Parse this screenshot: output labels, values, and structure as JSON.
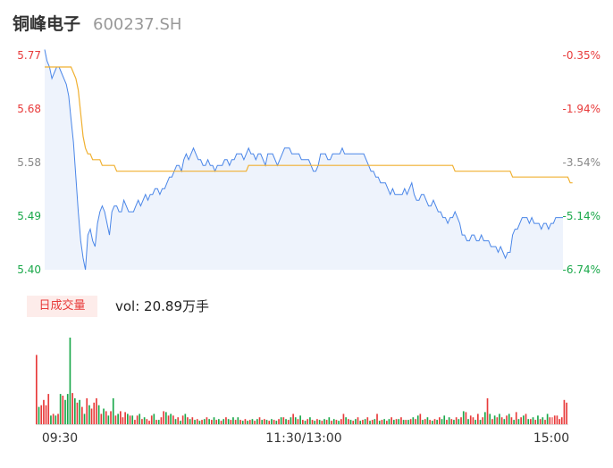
{
  "header": {
    "name": "铜峰电子",
    "code": "600237.SH"
  },
  "volume_panel": {
    "tag": "日成交量",
    "label": "vol: 20.89万手"
  },
  "colors": {
    "up": "#e83a3a",
    "down": "#1aa84a",
    "price_line": "#4a86e8",
    "avg_line": "#f0b030",
    "area": "#eef3fc"
  },
  "chart_data": [
    {
      "type": "line",
      "title": "",
      "x_ticks": [
        "09:30",
        "11:30/13:00",
        "15:00"
      ],
      "y_ticks": [
        "5.77",
        "5.68",
        "5.58",
        "5.49",
        "5.40"
      ],
      "y_ticks_right": [
        "-0.35%",
        "-1.94%",
        "-3.54%",
        "-5.14%",
        "-6.74%"
      ],
      "ylim": [
        5.4,
        5.77
      ],
      "series": [
        {
          "values": [
            5.78,
            5.76,
            5.75,
            5.73,
            5.74,
            5.75,
            5.75,
            5.74,
            5.73,
            5.72,
            5.7,
            5.66,
            5.62,
            5.56,
            5.5,
            5.45,
            5.42,
            5.4,
            5.46,
            5.47,
            5.45,
            5.44,
            5.48,
            5.5,
            5.51,
            5.5,
            5.48,
            5.46,
            5.5,
            5.51,
            5.51,
            5.5,
            5.5,
            5.52,
            5.51,
            5.5,
            5.5,
            5.5,
            5.51,
            5.52,
            5.51,
            5.52,
            5.53,
            5.52,
            5.53,
            5.53,
            5.54,
            5.54,
            5.53,
            5.54,
            5.54,
            5.55,
            5.56,
            5.56,
            5.57,
            5.58,
            5.58,
            5.57,
            5.59,
            5.6,
            5.59,
            5.6,
            5.61,
            5.6,
            5.59,
            5.59,
            5.58,
            5.58,
            5.59,
            5.58,
            5.58,
            5.57,
            5.58,
            5.58,
            5.58,
            5.59,
            5.59,
            5.58,
            5.59,
            5.59,
            5.6,
            5.6,
            5.6,
            5.59,
            5.6,
            5.61,
            5.6,
            5.6,
            5.59,
            5.6,
            5.6,
            5.59,
            5.58,
            5.6,
            5.6,
            5.6,
            5.59,
            5.58,
            5.59,
            5.6,
            5.61,
            5.61,
            5.61,
            5.6,
            5.6,
            5.6,
            5.6,
            5.59,
            5.59,
            5.59,
            5.59,
            5.58,
            5.57,
            5.57,
            5.58,
            5.6,
            5.6,
            5.6,
            5.59,
            5.59,
            5.6,
            5.6,
            5.6,
            5.6,
            5.61,
            5.6,
            5.6,
            5.6,
            5.6,
            5.6,
            5.6,
            5.6,
            5.6,
            5.6,
            5.59,
            5.58,
            5.57,
            5.57,
            5.56,
            5.56,
            5.55,
            5.55,
            5.55,
            5.54,
            5.53,
            5.54,
            5.53,
            5.53,
            5.53,
            5.53,
            5.54,
            5.53,
            5.54,
            5.55,
            5.53,
            5.52,
            5.52,
            5.53,
            5.53,
            5.52,
            5.51,
            5.51,
            5.52,
            5.51,
            5.5,
            5.5,
            5.49,
            5.49,
            5.48,
            5.49,
            5.49,
            5.5,
            5.49,
            5.48,
            5.46,
            5.46,
            5.45,
            5.45,
            5.46,
            5.46,
            5.45,
            5.45,
            5.46,
            5.45,
            5.45,
            5.45,
            5.44,
            5.44,
            5.44,
            5.43,
            5.44,
            5.43,
            5.42,
            5.43,
            5.43,
            5.46,
            5.47,
            5.47,
            5.48,
            5.49,
            5.49,
            5.49,
            5.48,
            5.49,
            5.48,
            5.48,
            5.48,
            5.47,
            5.48,
            5.48,
            5.47,
            5.48,
            5.48,
            5.49,
            5.49,
            5.49,
            5.49
          ]
        },
        {
          "values": [
            5.75,
            5.75,
            5.75,
            5.75,
            5.75,
            5.75,
            5.75,
            5.75,
            5.75,
            5.75,
            5.75,
            5.75,
            5.74,
            5.73,
            5.71,
            5.67,
            5.63,
            5.61,
            5.6,
            5.6,
            5.59,
            5.59,
            5.59,
            5.59,
            5.58,
            5.58,
            5.58,
            5.58,
            5.58,
            5.58,
            5.57,
            5.57,
            5.57,
            5.57,
            5.57,
            5.57,
            5.57,
            5.57,
            5.57,
            5.57,
            5.57,
            5.57,
            5.57,
            5.57,
            5.57,
            5.57,
            5.57,
            5.57,
            5.57,
            5.57,
            5.57,
            5.57,
            5.57,
            5.57,
            5.57,
            5.57,
            5.57,
            5.57,
            5.57,
            5.57,
            5.57,
            5.57,
            5.57,
            5.57,
            5.57,
            5.57,
            5.57,
            5.57,
            5.57,
            5.57,
            5.57,
            5.57,
            5.57,
            5.57,
            5.57,
            5.57,
            5.57,
            5.57,
            5.57,
            5.57,
            5.57,
            5.57,
            5.57,
            5.57,
            5.57,
            5.58,
            5.58,
            5.58,
            5.58,
            5.58,
            5.58,
            5.58,
            5.58,
            5.58,
            5.58,
            5.58,
            5.58,
            5.58,
            5.58,
            5.58,
            5.58,
            5.58,
            5.58,
            5.58,
            5.58,
            5.58,
            5.58,
            5.58,
            5.58,
            5.58,
            5.58,
            5.58,
            5.58,
            5.58,
            5.58,
            5.58,
            5.58,
            5.58,
            5.58,
            5.58,
            5.58,
            5.58,
            5.58,
            5.58,
            5.58,
            5.58,
            5.58,
            5.58,
            5.58,
            5.58,
            5.58,
            5.58,
            5.58,
            5.58,
            5.58,
            5.58,
            5.58,
            5.58,
            5.58,
            5.58,
            5.58,
            5.58,
            5.58,
            5.58,
            5.58,
            5.58,
            5.58,
            5.58,
            5.58,
            5.58,
            5.58,
            5.58,
            5.58,
            5.58,
            5.58,
            5.58,
            5.58,
            5.58,
            5.58,
            5.58,
            5.58,
            5.58,
            5.58,
            5.58,
            5.58,
            5.58,
            5.58,
            5.58,
            5.58,
            5.58,
            5.58,
            5.57,
            5.57,
            5.57,
            5.57,
            5.57,
            5.57,
            5.57,
            5.57,
            5.57,
            5.57,
            5.57,
            5.57,
            5.57,
            5.57,
            5.57,
            5.57,
            5.57,
            5.57,
            5.57,
            5.57,
            5.57,
            5.57,
            5.57,
            5.57,
            5.56,
            5.56,
            5.56,
            5.56,
            5.56,
            5.56,
            5.56,
            5.56,
            5.56,
            5.56,
            5.56,
            5.56,
            5.56,
            5.56,
            5.56,
            5.56,
            5.56,
            5.56,
            5.56,
            5.56,
            5.56,
            5.56,
            5.56,
            5.56,
            5.55,
            5.55
          ]
        }
      ]
    },
    {
      "type": "bar",
      "title": "",
      "x_ticks": [
        "09:30",
        "11:30/13:00",
        "15:00"
      ],
      "values": [
        80,
        20,
        22,
        28,
        22,
        35,
        10,
        12,
        10,
        12,
        35,
        33,
        28,
        35,
        100,
        36,
        30,
        25,
        28,
        20,
        12,
        30,
        22,
        18,
        25,
        30,
        22,
        12,
        18,
        15,
        10,
        15,
        30,
        10,
        12,
        15,
        8,
        14,
        12,
        10,
        10,
        5,
        10,
        12,
        6,
        8,
        6,
        4,
        10,
        12,
        5,
        5,
        8,
        15,
        14,
        10,
        12,
        10,
        6,
        8,
        4,
        10,
        12,
        8,
        6,
        8,
        5,
        6,
        4,
        5,
        6,
        8,
        6,
        5,
        8,
        5,
        6,
        4,
        6,
        8,
        6,
        5,
        8,
        5,
        8,
        5,
        4,
        6,
        4,
        5,
        6,
        4,
        6,
        8,
        5,
        6,
        5,
        4,
        6,
        5,
        4,
        6,
        8,
        8,
        6,
        5,
        8,
        12,
        8,
        6,
        10,
        5,
        4,
        6,
        8,
        5,
        4,
        6,
        5,
        4,
        6,
        5,
        8,
        4,
        6,
        5,
        4,
        6,
        12,
        8,
        6,
        5,
        4,
        6,
        8,
        4,
        5,
        6,
        8,
        4,
        5,
        6,
        12,
        4,
        5,
        6,
        4,
        6,
        8,
        5,
        6,
        6,
        8,
        5,
        5,
        5,
        6,
        8,
        6,
        10,
        12,
        5,
        6,
        8,
        5,
        4,
        6,
        5,
        8,
        6,
        10,
        5,
        8,
        6,
        5,
        8,
        6,
        8,
        15,
        14,
        6,
        10,
        8,
        5,
        12,
        5,
        8,
        14,
        30,
        12,
        6,
        10,
        8,
        12,
        8,
        6,
        10,
        12,
        8,
        5,
        14,
        6,
        8,
        10,
        12,
        6,
        6,
        8,
        5,
        10,
        6,
        8,
        5,
        12,
        8,
        8,
        10,
        10,
        6,
        8,
        28,
        25
      ],
      "colors": [
        "#e83a3a",
        "#1aa84a",
        "#e83a3a",
        "#e83a3a",
        "#e83a3a",
        "#e83a3a",
        "#1aa84a",
        "#e83a3a",
        "#1aa84a",
        "#e83a3a",
        "#1aa84a",
        "#e83a3a",
        "#1aa84a",
        "#1aa84a",
        "#1aa84a",
        "#e83a3a",
        "#1aa84a",
        "#e83a3a",
        "#1aa84a",
        "#e83a3a",
        "#1aa84a",
        "#e83a3a",
        "#1aa84a",
        "#e83a3a",
        "#e83a3a",
        "#e83a3a",
        "#1aa84a",
        "#e83a3a",
        "#1aa84a",
        "#e83a3a",
        "#1aa84a",
        "#e83a3a",
        "#1aa84a",
        "#e83a3a",
        "#1aa84a",
        "#e83a3a",
        "#e83a3a",
        "#e83a3a",
        "#1aa84a",
        "#e83a3a",
        "#1aa84a",
        "#e83a3a",
        "#e83a3a",
        "#1aa84a",
        "#e83a3a",
        "#1aa84a",
        "#e83a3a",
        "#e83a3a",
        "#e83a3a",
        "#1aa84a",
        "#e83a3a",
        "#1aa84a",
        "#e83a3a",
        "#e83a3a",
        "#1aa84a",
        "#e83a3a",
        "#1aa84a",
        "#e83a3a",
        "#1aa84a",
        "#e83a3a",
        "#1aa84a",
        "#e83a3a",
        "#1aa84a",
        "#e83a3a",
        "#1aa84a",
        "#e83a3a",
        "#1aa84a",
        "#e83a3a",
        "#1aa84a",
        "#e83a3a",
        "#1aa84a",
        "#e83a3a",
        "#1aa84a",
        "#e83a3a",
        "#1aa84a",
        "#e83a3a",
        "#1aa84a",
        "#e83a3a",
        "#1aa84a",
        "#e83a3a",
        "#1aa84a",
        "#e83a3a",
        "#1aa84a",
        "#e83a3a",
        "#1aa84a",
        "#e83a3a",
        "#1aa84a",
        "#e83a3a",
        "#1aa84a",
        "#e83a3a",
        "#1aa84a",
        "#e83a3a",
        "#1aa84a",
        "#e83a3a",
        "#1aa84a",
        "#e83a3a",
        "#1aa84a",
        "#e83a3a",
        "#1aa84a",
        "#e83a3a",
        "#1aa84a",
        "#e83a3a",
        "#1aa84a",
        "#e83a3a",
        "#1aa84a",
        "#e83a3a",
        "#1aa84a",
        "#e83a3a",
        "#1aa84a",
        "#e83a3a",
        "#1aa84a",
        "#e83a3a",
        "#1aa84a",
        "#e83a3a",
        "#1aa84a",
        "#e83a3a",
        "#1aa84a",
        "#e83a3a",
        "#1aa84a",
        "#e83a3a",
        "#1aa84a",
        "#e83a3a",
        "#1aa84a",
        "#e83a3a",
        "#1aa84a",
        "#e83a3a",
        "#1aa84a",
        "#e83a3a",
        "#e83a3a",
        "#1aa84a",
        "#e83a3a",
        "#1aa84a",
        "#e83a3a",
        "#1aa84a",
        "#e83a3a",
        "#1aa84a",
        "#e83a3a",
        "#1aa84a",
        "#e83a3a",
        "#1aa84a",
        "#e83a3a",
        "#1aa84a",
        "#e83a3a",
        "#1aa84a",
        "#e83a3a",
        "#1aa84a",
        "#e83a3a",
        "#1aa84a",
        "#e83a3a",
        "#1aa84a",
        "#e83a3a",
        "#1aa84a",
        "#e83a3a",
        "#1aa84a",
        "#e83a3a",
        "#1aa84a",
        "#e83a3a",
        "#1aa84a",
        "#e83a3a",
        "#1aa84a",
        "#e83a3a",
        "#1aa84a",
        "#e83a3a",
        "#1aa84a",
        "#e83a3a",
        "#1aa84a",
        "#e83a3a",
        "#1aa84a",
        "#e83a3a",
        "#1aa84a",
        "#1aa84a",
        "#e83a3a",
        "#1aa84a",
        "#e83a3a",
        "#1aa84a",
        "#e83a3a",
        "#1aa84a",
        "#e83a3a",
        "#1aa84a",
        "#e83a3a",
        "#1aa84a",
        "#e83a3a",
        "#e83a3a",
        "#1aa84a",
        "#e83a3a",
        "#1aa84a",
        "#e83a3a",
        "#1aa84a",
        "#e83a3a",
        "#1aa84a",
        "#e83a3a",
        "#1aa84a",
        "#e83a3a",
        "#1aa84a",
        "#e83a3a",
        "#1aa84a",
        "#e83a3a",
        "#1aa84a",
        "#e83a3a",
        "#1aa84a",
        "#e83a3a",
        "#1aa84a",
        "#e83a3a",
        "#1aa84a",
        "#e83a3a",
        "#1aa84a",
        "#e83a3a",
        "#1aa84a",
        "#e83a3a",
        "#1aa84a",
        "#e83a3a",
        "#1aa84a",
        "#e83a3a",
        "#1aa84a",
        "#e83a3a",
        "#f08080"
      ]
    }
  ]
}
